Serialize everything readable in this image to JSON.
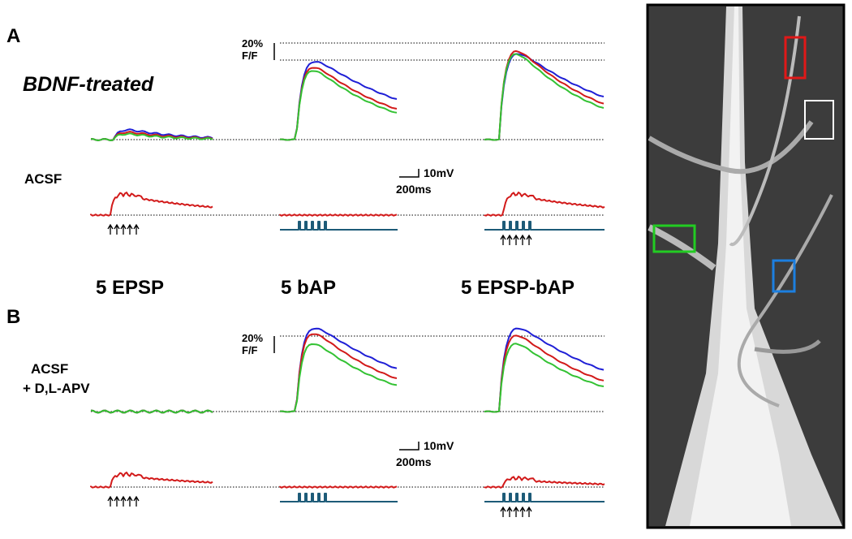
{
  "panel_a": {
    "label": "A",
    "condition": "BDNF-treated",
    "trace_label": "ACSF",
    "scale_fluorescence": {
      "amplitude": "20%",
      "unit": "F/F"
    },
    "scale_ephys": {
      "voltage": "10mV",
      "time": "200ms"
    }
  },
  "columns": [
    "5 EPSP",
    "5 bAP",
    "5 EPSP-bAP"
  ],
  "panel_b": {
    "label": "B",
    "condition": [
      "ACSF",
      "+ D,L-APV"
    ],
    "scale_fluorescence": {
      "amplitude": "20%",
      "unit": "F/F"
    },
    "scale_ephys": {
      "voltage": "10mV",
      "time": "200ms"
    }
  }
}
